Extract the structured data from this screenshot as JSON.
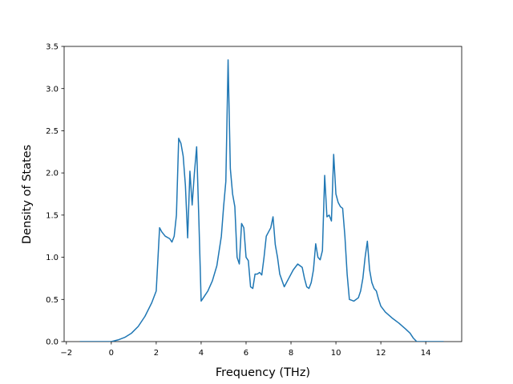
{
  "chart_data": {
    "type": "line",
    "title": "",
    "xlabel": "Frequency (THz)",
    "ylabel": "Density of States",
    "xlim": [
      -2.1,
      15.6
    ],
    "ylim": [
      0,
      3.5
    ],
    "xticks": [
      -2,
      0,
      2,
      4,
      6,
      8,
      10,
      12,
      14
    ],
    "xtick_labels": [
      "−2",
      "0",
      "2",
      "4",
      "6",
      "8",
      "10",
      "12",
      "14"
    ],
    "yticks": [
      0.0,
      0.5,
      1.0,
      1.5,
      2.0,
      2.5,
      3.0,
      3.5
    ],
    "ytick_labels": [
      "0.0",
      "0.5",
      "1.0",
      "1.5",
      "2.0",
      "2.5",
      "3.0",
      "3.5"
    ],
    "grid": false,
    "line_color": "#1f77b4",
    "series": [
      {
        "x": [
          -1.4,
          -0.5,
          0.0,
          0.3,
          0.6,
          0.9,
          1.2,
          1.5,
          1.8,
          2.0,
          2.15,
          2.25,
          2.4,
          2.6,
          2.7,
          2.8,
          2.9,
          3.0,
          3.1,
          3.2,
          3.3,
          3.4,
          3.5,
          3.6,
          3.7,
          3.8,
          3.9,
          4.0,
          4.1,
          4.3,
          4.5,
          4.7,
          4.9,
          5.0,
          5.1,
          5.2,
          5.3,
          5.4,
          5.5,
          5.6,
          5.7,
          5.8,
          5.9,
          6.0,
          6.1,
          6.2,
          6.3,
          6.4,
          6.5,
          6.6,
          6.7,
          6.8,
          6.9,
          7.0,
          7.1,
          7.2,
          7.3,
          7.4,
          7.5,
          7.7,
          7.9,
          8.1,
          8.3,
          8.5,
          8.6,
          8.7,
          8.8,
          8.9,
          9.0,
          9.1,
          9.2,
          9.3,
          9.4,
          9.5,
          9.6,
          9.7,
          9.8,
          9.9,
          10.0,
          10.1,
          10.2,
          10.3,
          10.4,
          10.5,
          10.6,
          10.7,
          10.8,
          11.0,
          11.1,
          11.2,
          11.3,
          11.4,
          11.5,
          11.6,
          11.7,
          11.8,
          11.9,
          12.0,
          12.2,
          12.5,
          12.8,
          13.1,
          13.3,
          13.45,
          13.6,
          14.0,
          14.5,
          14.8
        ],
        "y": [
          0.0,
          0.0,
          0.0,
          0.02,
          0.05,
          0.1,
          0.18,
          0.3,
          0.46,
          0.6,
          1.35,
          1.3,
          1.25,
          1.22,
          1.18,
          1.25,
          1.5,
          2.41,
          2.35,
          2.2,
          1.85,
          1.23,
          2.02,
          1.62,
          2.0,
          2.31,
          1.43,
          0.48,
          0.52,
          0.6,
          0.72,
          0.9,
          1.25,
          1.6,
          1.9,
          3.34,
          2.05,
          1.75,
          1.6,
          1.0,
          0.92,
          1.4,
          1.35,
          1.0,
          0.96,
          0.65,
          0.63,
          0.8,
          0.8,
          0.82,
          0.79,
          1.0,
          1.25,
          1.3,
          1.35,
          1.48,
          1.15,
          1.0,
          0.8,
          0.65,
          0.75,
          0.85,
          0.92,
          0.88,
          0.75,
          0.65,
          0.63,
          0.7,
          0.85,
          1.16,
          1.0,
          0.97,
          1.08,
          1.97,
          1.48,
          1.5,
          1.43,
          2.22,
          1.75,
          1.65,
          1.6,
          1.58,
          1.25,
          0.8,
          0.5,
          0.49,
          0.48,
          0.52,
          0.6,
          0.75,
          1.0,
          1.19,
          0.85,
          0.7,
          0.63,
          0.6,
          0.5,
          0.42,
          0.35,
          0.28,
          0.22,
          0.15,
          0.1,
          0.04,
          0.0,
          0.0,
          0.0,
          0.0
        ]
      }
    ]
  }
}
